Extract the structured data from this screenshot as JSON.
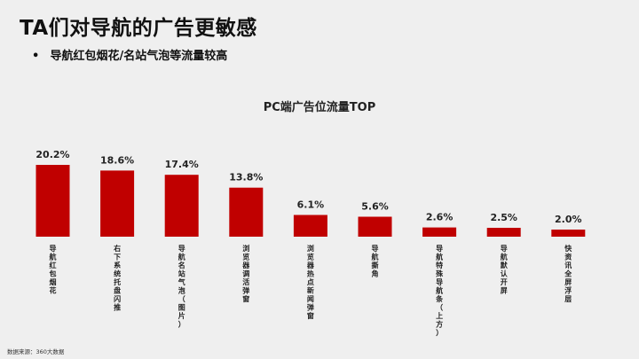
{
  "slide": {
    "title": "TA们对导航的广告更敏感",
    "bullet": "•",
    "bullet_text": "导航红包烟花/名站气泡等流量较高",
    "source": "数据来源：360大数据"
  },
  "chart_data": {
    "type": "bar",
    "title": "PC端广告位流量TOP",
    "categories": [
      "导航红包烟花",
      "右下系统托盘闪推",
      "导航名站气泡（图片）",
      "浏览器调活弹窗",
      "浏览器热点新闻弹窗",
      "导航撕角",
      "导航特殊导航条（上方）",
      "导航默认开屏",
      "快资讯全屏浮层"
    ],
    "values": [
      20.2,
      18.6,
      17.4,
      13.8,
      6.1,
      5.6,
      2.6,
      2.5,
      2.0
    ],
    "value_labels": [
      "20.2%",
      "18.6%",
      "17.4%",
      "13.8%",
      "6.1%",
      "5.6%",
      "2.6%",
      "2.5%",
      "2.0%"
    ],
    "unit": "%",
    "bar_color": "#c00000",
    "grid": false,
    "legend": "none"
  }
}
